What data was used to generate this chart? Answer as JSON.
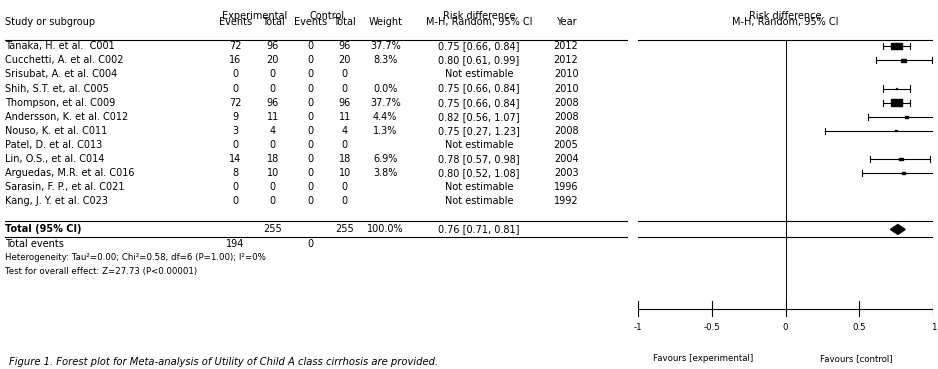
{
  "studies": [
    {
      "name": "Tanaka, H. et al.  C001",
      "exp_events": "72",
      "exp_total": "96",
      "ctrl_events": "0",
      "ctrl_total": "96",
      "weight": "37.7%",
      "ci_text": "0.75 [0.66, 0.84]",
      "year": "2012",
      "est": 0.75,
      "lo": 0.66,
      "hi": 0.84,
      "estimable": true,
      "sq_size": 0.018
    },
    {
      "name": "Cucchetti, A. et al. C002",
      "exp_events": "16",
      "exp_total": "20",
      "ctrl_events": "0",
      "ctrl_total": "20",
      "weight": "8.3%",
      "ci_text": "0.80 [0.61, 0.99]",
      "year": "2012",
      "est": 0.8,
      "lo": 0.61,
      "hi": 0.99,
      "estimable": true,
      "sq_size": 0.008
    },
    {
      "name": "Srisubat, A. et al. C004",
      "exp_events": "0",
      "exp_total": "0",
      "ctrl_events": "0",
      "ctrl_total": "0",
      "weight": "",
      "ci_text": "Not estimable",
      "year": "2010",
      "est": null,
      "lo": null,
      "hi": null,
      "estimable": false,
      "sq_size": 0
    },
    {
      "name": "Shih, S.T. et, al. C005",
      "exp_events": "0",
      "exp_total": "0",
      "ctrl_events": "0",
      "ctrl_total": "0",
      "weight": "0.0%",
      "ci_text": "0.75 [0.66, 0.84]",
      "year": "2010",
      "est": 0.75,
      "lo": 0.66,
      "hi": 0.84,
      "estimable": true,
      "sq_size": 0.002
    },
    {
      "name": "Thompson, et al. C009",
      "exp_events": "72",
      "exp_total": "96",
      "ctrl_events": "0",
      "ctrl_total": "96",
      "weight": "37.7%",
      "ci_text": "0.75 [0.66, 0.84]",
      "year": "2008",
      "est": 0.75,
      "lo": 0.66,
      "hi": 0.84,
      "estimable": true,
      "sq_size": 0.018
    },
    {
      "name": "Andersson, K. et al. C012",
      "exp_events": "9",
      "exp_total": "11",
      "ctrl_events": "0",
      "ctrl_total": "11",
      "weight": "4.4%",
      "ci_text": "0.82 [0.56, 1.07]",
      "year": "2008",
      "est": 0.82,
      "lo": 0.56,
      "hi": 1.07,
      "estimable": true,
      "sq_size": 0.005
    },
    {
      "name": "Nouso, K. et al. C011",
      "exp_events": "3",
      "exp_total": "4",
      "ctrl_events": "0",
      "ctrl_total": "4",
      "weight": "1.3%",
      "ci_text": "0.75 [0.27, 1.23]",
      "year": "2008",
      "est": 0.75,
      "lo": 0.27,
      "hi": 1.23,
      "estimable": true,
      "sq_size": 0.003
    },
    {
      "name": "Patel, D. et al. C013",
      "exp_events": "0",
      "exp_total": "0",
      "ctrl_events": "0",
      "ctrl_total": "0",
      "weight": "",
      "ci_text": "Not estimable",
      "year": "2005",
      "est": null,
      "lo": null,
      "hi": null,
      "estimable": false,
      "sq_size": 0
    },
    {
      "name": "Lin, O.S., et al. C014",
      "exp_events": "14",
      "exp_total": "18",
      "ctrl_events": "0",
      "ctrl_total": "18",
      "weight": "6.9%",
      "ci_text": "0.78 [0.57, 0.98]",
      "year": "2004",
      "est": 0.78,
      "lo": 0.57,
      "hi": 0.98,
      "estimable": true,
      "sq_size": 0.007
    },
    {
      "name": "Arguedas, M.R. et al. C016",
      "exp_events": "8",
      "exp_total": "10",
      "ctrl_events": "0",
      "ctrl_total": "10",
      "weight": "3.8%",
      "ci_text": "0.80 [0.52, 1.08]",
      "year": "2003",
      "est": 0.8,
      "lo": 0.52,
      "hi": 1.08,
      "estimable": true,
      "sq_size": 0.005
    },
    {
      "name": "Sarasin, F. P., et al. C021",
      "exp_events": "0",
      "exp_total": "0",
      "ctrl_events": "0",
      "ctrl_total": "0",
      "weight": "",
      "ci_text": "Not estimable",
      "year": "1996",
      "est": null,
      "lo": null,
      "hi": null,
      "estimable": false,
      "sq_size": 0
    },
    {
      "name": "Kang, J. Y. et al. C023",
      "exp_events": "0",
      "exp_total": "0",
      "ctrl_events": "0",
      "ctrl_total": "0",
      "weight": "",
      "ci_text": "Not estimable",
      "year": "1992",
      "est": null,
      "lo": null,
      "hi": null,
      "estimable": false,
      "sq_size": 0
    }
  ],
  "total": {
    "exp_total": "255",
    "ctrl_total": "255",
    "weight": "100.0%",
    "ci_text": "0.76 [0.71, 0.81]",
    "est": 0.76,
    "lo": 0.71,
    "hi": 0.81
  },
  "total_events_exp": "194",
  "total_events_ctrl": "0",
  "heterogeneity": "Heterogeneity: Tau²=0.00; Chi²=0.58, df=6 (P=1.00); I²=0%",
  "overall_test": "Test for overall effect: Z=27.73 (P<0.00001)",
  "figure_caption": "Figure 1. Forest plot for Meta-analysis of Utility of Child A class cirrhosis are provided.",
  "xlim": [
    -1.0,
    1.0
  ],
  "xtick_vals": [
    -1.0,
    -0.5,
    0.0,
    0.5,
    1.0
  ],
  "xtick_labels": [
    "-1",
    "-0.5",
    "0",
    "0.5",
    "1"
  ],
  "xlabel_left": "Favours [experimental]",
  "xlabel_right": "Favours [control]",
  "bg_color": "#ffffff",
  "text_color": "#000000"
}
